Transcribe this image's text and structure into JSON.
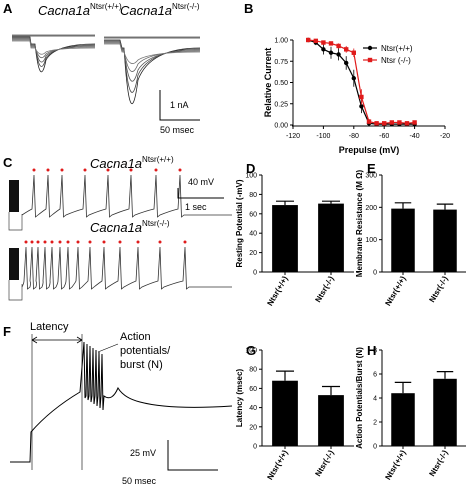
{
  "panels": {
    "A": {
      "letter": "A",
      "label_left": "Cacna1a",
      "label_left_sup": "Ntsr(+/+)",
      "label_right": "Cacna1a",
      "label_right_sup": "Ntsr(-/-)",
      "scale_y": "1 nA",
      "scale_x": "50 msec"
    },
    "C": {
      "letter": "C",
      "label_top": "Cacna1a",
      "label_top_sup": "Ntsr(+/+)",
      "label_bottom": "Cacna1a",
      "label_bottom_sup": "Ntsr(-/-)",
      "scale_y": "40 mV",
      "scale_x": "1 sec"
    },
    "F": {
      "letter": "F",
      "latency_label": "Latency",
      "ap_label_1": "Action",
      "ap_label_2": "potentials/",
      "ap_label_3": "burst (N)",
      "scale_y": "25 mV",
      "scale_x": "50 msec"
    }
  },
  "chart_data": [
    {
      "panel": "B",
      "type": "line",
      "xlabel": "Prepulse (mV)",
      "ylabel": "Relative Current",
      "xlim": [
        -120,
        -20
      ],
      "ylim": [
        0,
        1.0
      ],
      "xticks": [
        "-120",
        "-100",
        "-80",
        "-60",
        "-40",
        "-20"
      ],
      "yticks": [
        "0.00",
        "0.25",
        "0.50",
        "0.75",
        "1.00"
      ],
      "legend_position": "top-right",
      "series": [
        {
          "name": "Ntsr(+/+)",
          "color": "#000000",
          "marker": "circle",
          "x": [
            -110,
            -105,
            -100,
            -95,
            -90,
            -85,
            -80,
            -75,
            -70,
            -65,
            -60,
            -55,
            -50,
            -45,
            -40
          ],
          "y": [
            1.0,
            0.97,
            0.89,
            0.85,
            0.83,
            0.73,
            0.55,
            0.22,
            0.02,
            0.01,
            0.01,
            0.01,
            0.01,
            0.01,
            0.01
          ],
          "err": [
            0.01,
            0.03,
            0.06,
            0.07,
            0.07,
            0.08,
            0.1,
            0.08,
            0.02,
            0.01,
            0.01,
            0.01,
            0.01,
            0.01,
            0.01
          ]
        },
        {
          "name": "Ntsr (-/-)",
          "color": "#e01b1b",
          "marker": "square",
          "x": [
            -110,
            -105,
            -100,
            -95,
            -90,
            -85,
            -80,
            -75,
            -70,
            -65,
            -60,
            -55,
            -50,
            -45,
            -40
          ],
          "y": [
            1.0,
            0.99,
            0.97,
            0.96,
            0.93,
            0.89,
            0.85,
            0.33,
            0.04,
            0.02,
            0.02,
            0.03,
            0.03,
            0.02,
            0.03
          ],
          "err": [
            0.01,
            0.01,
            0.02,
            0.02,
            0.03,
            0.04,
            0.05,
            0.09,
            0.03,
            0.02,
            0.02,
            0.02,
            0.02,
            0.02,
            0.02
          ]
        }
      ]
    },
    {
      "panel": "D",
      "letter": "D",
      "type": "bar",
      "ylabel": "Resting Potential (-mV)",
      "categories": [
        "Ntsr(+/+)",
        "Ntsr(-/-)"
      ],
      "values": [
        69,
        70.5
      ],
      "errors": [
        4,
        2.5
      ],
      "ylim": [
        0,
        100
      ],
      "yticks": [
        "0",
        "20",
        "40",
        "60",
        "80",
        "100"
      ]
    },
    {
      "panel": "E",
      "letter": "E",
      "type": "bar",
      "ylabel": "Membrane Resistance (M Ω)",
      "categories": [
        "Ntsr(+/+)",
        "Ntsr(-/-)"
      ],
      "values": [
        196,
        193
      ],
      "errors": [
        18,
        17
      ],
      "ylim": [
        0,
        300
      ],
      "yticks": [
        "0",
        "100",
        "200",
        "300"
      ]
    },
    {
      "panel": "G",
      "letter": "G",
      "type": "bar",
      "ylabel": "Latency (msec)",
      "categories": [
        "Ntsr(+/+)",
        "Ntsr(-/-)"
      ],
      "values": [
        68,
        53
      ],
      "errors": [
        10,
        9
      ],
      "ylim": [
        0,
        100
      ],
      "yticks": [
        "0",
        "20",
        "40",
        "60",
        "80",
        "100"
      ]
    },
    {
      "panel": "H",
      "letter": "H",
      "type": "bar",
      "ylabel": "Action Potentials/Burst (N)",
      "categories": [
        "Ntsr(+/+)",
        "Ntsr(-/-)"
      ],
      "values": [
        4.4,
        5.6
      ],
      "errors": [
        0.9,
        0.6
      ],
      "ylim": [
        0,
        8
      ],
      "yticks": [
        "0",
        "2",
        "4",
        "6",
        "8"
      ]
    }
  ]
}
